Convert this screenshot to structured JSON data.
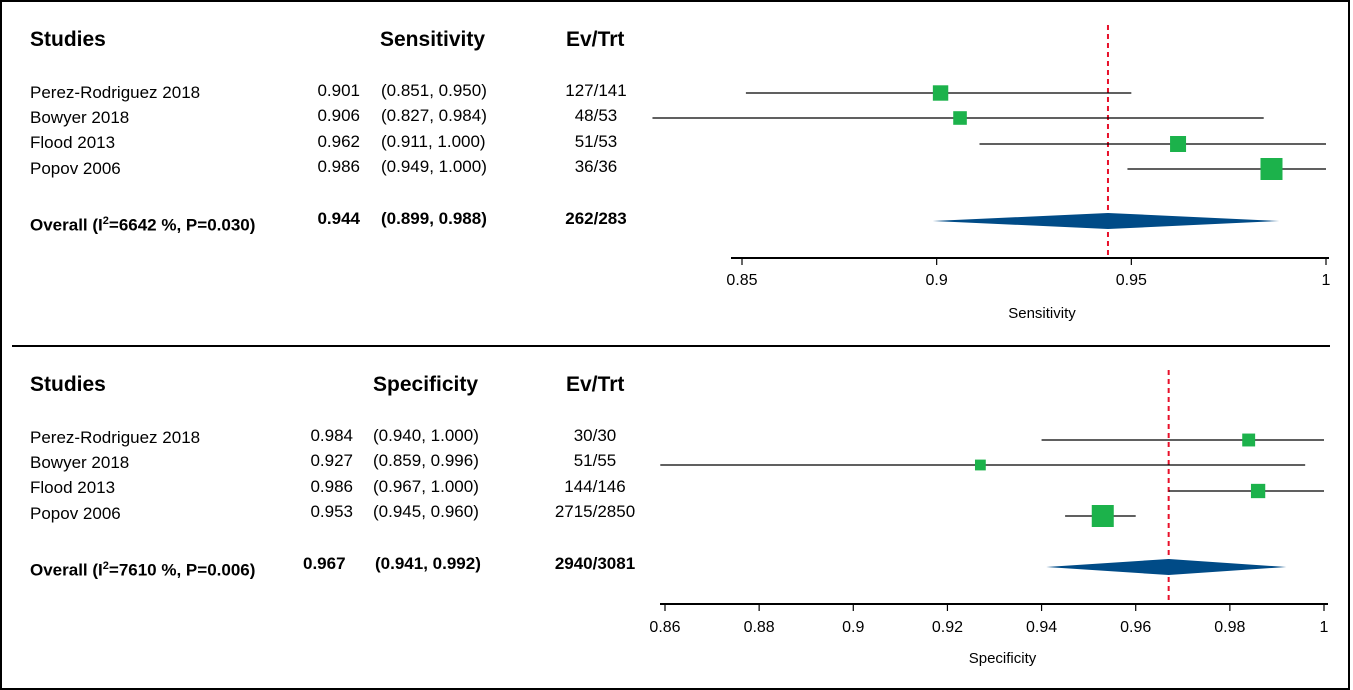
{
  "colors": {
    "marker": "#1cb24b",
    "diamond": "#004b87",
    "ref_line": "#e8102a",
    "line": "#000000"
  },
  "chart_data": [
    {
      "type": "forest",
      "columns": {
        "studies": "Studies",
        "estimate": "Sensitivity",
        "events": "Ev/Trt"
      },
      "xlabel": "Sensitivity",
      "xlim": [
        0.85,
        1.0
      ],
      "ticks": [
        "0.85",
        "0.9",
        "0.95",
        "1"
      ],
      "tick_values": [
        0.85,
        0.9,
        0.95,
        1.0
      ],
      "reference_line": 0.944,
      "rows": [
        {
          "study": "Perez-Rodriguez 2018",
          "estimate_text": "0.901",
          "ci_text": "(0.851, 0.950)",
          "events": "127/141",
          "estimate": 0.901,
          "lower": 0.851,
          "upper": 0.95,
          "weight": 0.45
        },
        {
          "study": "Bowyer 2018",
          "estimate_text": "0.906",
          "ci_text": "(0.827, 0.984)",
          "events": "48/53",
          "estimate": 0.906,
          "lower": 0.827,
          "upper": 0.984,
          "weight": 0.3
        },
        {
          "study": "Flood 2013",
          "estimate_text": "0.962",
          "ci_text": "(0.911, 1.000)",
          "events": "51/53",
          "estimate": 0.962,
          "lower": 0.911,
          "upper": 1.0,
          "weight": 0.5
        },
        {
          "study": "Popov 2006",
          "estimate_text": "0.986",
          "ci_text": "(0.949, 1.000)",
          "events": "36/36",
          "estimate": 0.986,
          "lower": 0.949,
          "upper": 1.0,
          "weight": 1.0
        }
      ],
      "overall": {
        "label_prefix": "Overall (I",
        "label_sup": "2",
        "label_suffix": "=6642 %, P=0.030)",
        "estimate_text": "0.944",
        "ci_text": "(0.899, 0.988)",
        "events": "262/283",
        "estimate": 0.944,
        "lower": 0.899,
        "upper": 0.988
      }
    },
    {
      "type": "forest",
      "columns": {
        "studies": "Studies",
        "estimate": "Specificity",
        "events": "Ev/Trt"
      },
      "xlabel": "Specificity",
      "xlim": [
        0.86,
        1.0
      ],
      "ticks": [
        "0.86",
        "0.88",
        "0.9",
        "0.92",
        "0.94",
        "0.96",
        "0.98",
        "1"
      ],
      "tick_values": [
        0.86,
        0.88,
        0.9,
        0.92,
        0.94,
        0.96,
        0.98,
        1.0
      ],
      "reference_line": 0.967,
      "rows": [
        {
          "study": "Perez-Rodriguez 2018",
          "estimate_text": "0.984",
          "ci_text": "(0.940, 1.000)",
          "events": "30/30",
          "estimate": 0.984,
          "lower": 0.94,
          "upper": 1.0,
          "weight": 0.35
        },
        {
          "study": "Bowyer 2018",
          "estimate_text": "0.927",
          "ci_text": "(0.859, 0.996)",
          "events": "51/55",
          "estimate": 0.927,
          "lower": 0.859,
          "upper": 0.996,
          "weight": 0.2
        },
        {
          "study": "Flood 2013",
          "estimate_text": "0.986",
          "ci_text": "(0.967, 1.000)",
          "events": "144/146",
          "estimate": 0.986,
          "lower": 0.967,
          "upper": 1.0,
          "weight": 0.45
        },
        {
          "study": "Popov 2006",
          "estimate_text": "0.953",
          "ci_text": "(0.945, 0.960)",
          "events": "2715/2850",
          "estimate": 0.953,
          "lower": 0.945,
          "upper": 0.96,
          "weight": 1.0
        }
      ],
      "overall": {
        "label_prefix": "Overall (I",
        "label_sup": "2",
        "label_suffix": "=7610 %, P=0.006)",
        "estimate_text": "0.967",
        "ci_text": "(0.941, 0.992)",
        "events": "2940/3081",
        "estimate": 0.967,
        "lower": 0.941,
        "upper": 0.992
      }
    }
  ]
}
